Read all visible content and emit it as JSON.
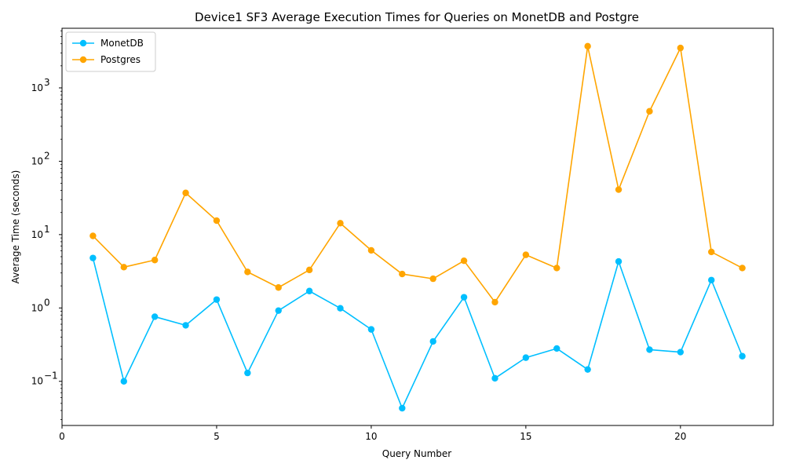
{
  "chart_data": {
    "type": "line",
    "title": "Device1 SF3 Average Execution Times for Queries on MonetDB and Postgre",
    "xlabel": "Query Number",
    "ylabel": "Average Time (seconds)",
    "yscale": "log",
    "xlim": [
      0,
      23
    ],
    "ylim": [
      0.025,
      6500
    ],
    "x_ticks": [
      0,
      5,
      10,
      15,
      20
    ],
    "y_ticks": [
      {
        "value": 0.1,
        "base": "10",
        "exp": "−1"
      },
      {
        "value": 1,
        "base": "10",
        "exp": "0"
      },
      {
        "value": 10,
        "base": "10",
        "exp": "1"
      },
      {
        "value": 100,
        "base": "10",
        "exp": "2"
      },
      {
        "value": 1000,
        "base": "10",
        "exp": "3"
      }
    ],
    "grid": false,
    "legend_position": "top-left",
    "x": [
      1,
      2,
      3,
      4,
      5,
      6,
      7,
      8,
      9,
      10,
      11,
      12,
      13,
      14,
      15,
      16,
      17,
      18,
      19,
      20,
      21,
      22
    ],
    "series": [
      {
        "name": "MonetDB",
        "color": "#00bfff",
        "values": [
          4.8,
          0.1,
          0.76,
          0.58,
          1.3,
          0.13,
          0.92,
          1.7,
          0.99,
          0.51,
          0.043,
          0.35,
          1.4,
          0.11,
          0.21,
          0.28,
          0.145,
          4.3,
          0.27,
          0.25,
          2.4,
          0.22
        ]
      },
      {
        "name": "Postgres",
        "color": "#ffa500",
        "values": [
          9.6,
          3.6,
          4.5,
          37,
          15.5,
          3.1,
          1.9,
          3.3,
          14.3,
          6.1,
          2.9,
          2.5,
          4.4,
          1.2,
          5.3,
          3.5,
          3700,
          41,
          480,
          3500,
          5.8,
          3.5
        ]
      }
    ]
  }
}
